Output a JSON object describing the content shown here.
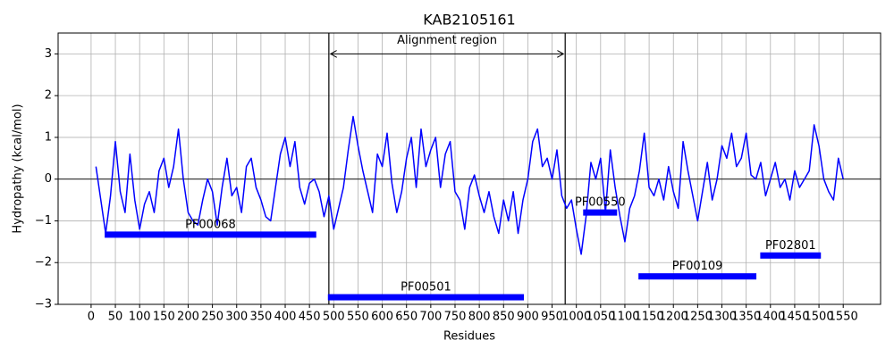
{
  "chart_data": {
    "type": "line",
    "title": "KAB2105161",
    "x_label": "Residues",
    "y_label": "Hydropathy (kcal/mol)",
    "xlim": [
      -68,
      1627
    ],
    "ylim": [
      -3,
      3.5
    ],
    "xticks": [
      0,
      50,
      100,
      150,
      200,
      250,
      300,
      350,
      400,
      450,
      500,
      550,
      600,
      650,
      700,
      750,
      800,
      850,
      900,
      950,
      1000,
      1050,
      1100,
      1150,
      1200,
      1250,
      1300,
      1350,
      1400,
      1450,
      1500,
      1550
    ],
    "yticks": [
      {
        "value": -3,
        "label": "−3"
      },
      {
        "value": -2,
        "label": "−2"
      },
      {
        "value": -1,
        "label": "−1"
      },
      0,
      1,
      2,
      3
    ],
    "grid": true,
    "hline": 0,
    "vlines": [
      490,
      977
    ],
    "annotation": {
      "text": "Alignment region",
      "x": [
        490,
        977
      ],
      "y": 3
    },
    "x": [
      10,
      20,
      30,
      40,
      50,
      60,
      70,
      80,
      90,
      100,
      110,
      120,
      130,
      140,
      150,
      160,
      170,
      180,
      190,
      200,
      210,
      220,
      230,
      240,
      250,
      260,
      270,
      280,
      290,
      300,
      310,
      320,
      330,
      340,
      350,
      360,
      370,
      380,
      390,
      400,
      410,
      420,
      430,
      440,
      450,
      460,
      470,
      480,
      490,
      500,
      510,
      520,
      530,
      540,
      550,
      560,
      570,
      580,
      590,
      600,
      610,
      620,
      630,
      640,
      650,
      660,
      670,
      680,
      690,
      700,
      710,
      720,
      730,
      740,
      750,
      760,
      770,
      780,
      790,
      800,
      810,
      820,
      830,
      840,
      850,
      860,
      870,
      880,
      890,
      900,
      910,
      920,
      930,
      940,
      950,
      960,
      970,
      980,
      990,
      1000,
      1010,
      1020,
      1030,
      1040,
      1050,
      1060,
      1070,
      1080,
      1090,
      1100,
      1110,
      1120,
      1130,
      1140,
      1150,
      1160,
      1170,
      1180,
      1190,
      1200,
      1210,
      1220,
      1230,
      1240,
      1250,
      1260,
      1270,
      1280,
      1290,
      1300,
      1310,
      1320,
      1330,
      1340,
      1350,
      1360,
      1370,
      1380,
      1390,
      1400,
      1410,
      1420,
      1430,
      1440,
      1450,
      1460,
      1470,
      1480,
      1490,
      1500,
      1510,
      1520,
      1530,
      1540,
      1550
    ],
    "series": [
      {
        "color": "#0000ff",
        "values": [
          0.3,
          -0.5,
          -1.3,
          -0.4,
          0.9,
          -0.3,
          -0.8,
          0.6,
          -0.5,
          -1.2,
          -0.6,
          -0.3,
          -0.8,
          0.2,
          0.5,
          -0.2,
          0.3,
          1.2,
          0.0,
          -0.8,
          -1.0,
          -1.1,
          -0.5,
          0.0,
          -0.3,
          -1.1,
          -0.2,
          0.5,
          -0.4,
          -0.2,
          -0.8,
          0.3,
          0.5,
          -0.2,
          -0.5,
          -0.9,
          -1.0,
          -0.2,
          0.6,
          1.0,
          0.3,
          0.9,
          -0.2,
          -0.6,
          -0.1,
          0.0,
          -0.3,
          -0.9,
          -0.4,
          -1.2,
          -0.7,
          -0.2,
          0.7,
          1.5,
          0.8,
          0.2,
          -0.3,
          -0.8,
          0.6,
          0.3,
          1.1,
          -0.1,
          -0.8,
          -0.3,
          0.5,
          1.0,
          -0.2,
          1.2,
          0.3,
          0.7,
          1.0,
          -0.2,
          0.6,
          0.9,
          -0.3,
          -0.5,
          -1.2,
          -0.2,
          0.1,
          -0.4,
          -0.8,
          -0.3,
          -0.9,
          -1.3,
          -0.5,
          -1.0,
          -0.3,
          -1.3,
          -0.5,
          0.0,
          0.9,
          1.2,
          0.3,
          0.5,
          0.0,
          0.7,
          -0.4,
          -0.7,
          -0.5,
          -1.2,
          -1.8,
          -0.9,
          0.4,
          0.0,
          0.5,
          -0.8,
          0.7,
          -0.2,
          -0.9,
          -1.5,
          -0.7,
          -0.4,
          0.2,
          1.1,
          -0.2,
          -0.4,
          0.0,
          -0.5,
          0.3,
          -0.3,
          -0.7,
          0.9,
          0.2,
          -0.4,
          -1.0,
          -0.3,
          0.4,
          -0.5,
          0.0,
          0.8,
          0.5,
          1.1,
          0.3,
          0.5,
          1.1,
          0.1,
          0.0,
          0.4,
          -0.4,
          0.0,
          0.4,
          -0.2,
          0.0,
          -0.5,
          0.2,
          -0.2,
          0.0,
          0.2,
          1.3,
          0.8,
          0.0,
          -0.3,
          -0.5,
          0.5,
          0.0
        ]
      }
    ],
    "domains": [
      {
        "label": "PF00068",
        "start": 28,
        "end": 464,
        "y": -1.33
      },
      {
        "label": "PF00501",
        "start": 488,
        "end": 892,
        "y": -2.83
      },
      {
        "label": "PF00550",
        "start": 1014,
        "end": 1084,
        "y": -0.8
      },
      {
        "label": "PF00109",
        "start": 1128,
        "end": 1371,
        "y": -2.33
      },
      {
        "label": "PF02801",
        "start": 1379,
        "end": 1504,
        "y": -1.83
      }
    ],
    "domain_color": "#0000ff"
  }
}
